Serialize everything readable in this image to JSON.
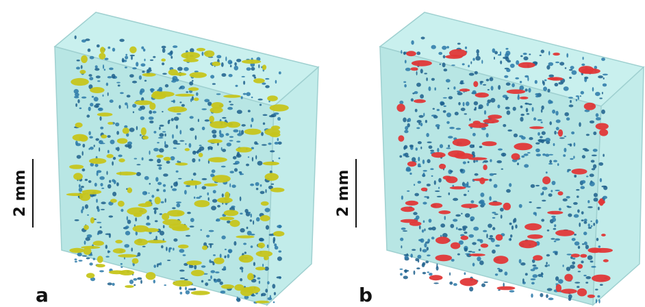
{
  "panels": [
    {
      "label": "a",
      "scale_bar": "2 mm"
    },
    {
      "label": "b",
      "scale_bar": "2 mm"
    }
  ]
}
